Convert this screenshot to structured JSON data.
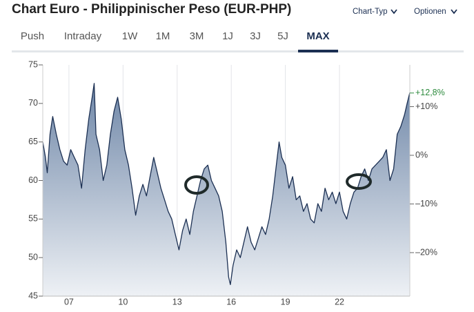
{
  "ui": {
    "menu": [
      "Chart-Typ",
      "Optionen"
    ],
    "tabs": [
      "Push",
      "Intraday",
      "1W",
      "1M",
      "3M",
      "1J",
      "3J",
      "5J",
      "MAX"
    ]
  },
  "chart_data": {
    "type": "area",
    "title": "Chart Euro - Philippinischer Peso (EUR-PHP)",
    "x": [
      2005.55,
      2005.7,
      2005.8,
      2005.95,
      2006.1,
      2006.3,
      2006.5,
      2006.7,
      2006.9,
      2007.1,
      2007.3,
      2007.5,
      2007.7,
      2007.9,
      2008.1,
      2008.3,
      2008.4,
      2008.5,
      2008.7,
      2008.9,
      2009.1,
      2009.3,
      2009.5,
      2009.7,
      2009.9,
      2010.1,
      2010.3,
      2010.5,
      2010.7,
      2010.9,
      2011.1,
      2011.3,
      2011.5,
      2011.7,
      2011.9,
      2012.1,
      2012.3,
      2012.5,
      2012.7,
      2012.9,
      2013.1,
      2013.3,
      2013.5,
      2013.7,
      2013.9,
      2014.1,
      2014.3,
      2014.5,
      2014.7,
      2014.9,
      2015.1,
      2015.3,
      2015.5,
      2015.7,
      2015.85,
      2015.95,
      2016.1,
      2016.3,
      2016.5,
      2016.7,
      2016.9,
      2017.1,
      2017.3,
      2017.5,
      2017.7,
      2017.9,
      2018.1,
      2018.3,
      2018.5,
      2018.65,
      2018.8,
      2019.0,
      2019.2,
      2019.4,
      2019.6,
      2019.8,
      2020.0,
      2020.2,
      2020.4,
      2020.6,
      2020.8,
      2021.0,
      2021.2,
      2021.4,
      2021.6,
      2021.8,
      2022.0,
      2022.2,
      2022.4,
      2022.6,
      2022.8,
      2023.0,
      2023.2,
      2023.4,
      2023.6,
      2023.8,
      2024.0,
      2024.2,
      2024.4,
      2024.6,
      2024.8,
      2025.0,
      2025.2,
      2025.4,
      2025.6,
      2025.75,
      2025.9
    ],
    "series": [
      {
        "color": "#1b2f52",
        "values": [
          65,
          63,
          61,
          66,
          68.3,
          66,
          64,
          62.5,
          62,
          64,
          63,
          62,
          59,
          64,
          68,
          71,
          72.6,
          66,
          64,
          60,
          62,
          66,
          69,
          70.8,
          68,
          64,
          62,
          59,
          55.5,
          58,
          59.5,
          58,
          60.5,
          63,
          61,
          59,
          57.5,
          56,
          55,
          53,
          51,
          53.5,
          55,
          53,
          56,
          58,
          60,
          61.5,
          62,
          60,
          59,
          58,
          56,
          52,
          47.5,
          46.5,
          49,
          51,
          50,
          52,
          54,
          52,
          51,
          52.5,
          54,
          53,
          55,
          58,
          62,
          65,
          63,
          62,
          59,
          60.5,
          57.5,
          58,
          56,
          57,
          55,
          54.5,
          57,
          56,
          59,
          57.5,
          58.5,
          57,
          58.5,
          56,
          55,
          57,
          58.5,
          59,
          60.5,
          61.5,
          60,
          61.5,
          62,
          62.5,
          63,
          64,
          60,
          61.5,
          66,
          67,
          68.5,
          70,
          71.4
        ]
      }
    ],
    "xlim": [
      2005.55,
      2025.9
    ],
    "xticks": [
      {
        "value": 2007,
        "label": "07"
      },
      {
        "value": 2010,
        "label": "10"
      },
      {
        "value": 2013,
        "label": "13"
      },
      {
        "value": 2016,
        "label": "16"
      },
      {
        "value": 2019,
        "label": "19"
      },
      {
        "value": 2022,
        "label": "22"
      }
    ],
    "ylim": [
      45,
      75
    ],
    "yticks": [
      45,
      50,
      55,
      60,
      65,
      70,
      75
    ],
    "y2lim": [
      -28.94,
      18.58
    ],
    "y2ticks": [
      {
        "value": 10,
        "label": "+10%"
      },
      {
        "value": 0,
        "label": "0%"
      },
      {
        "value": -10,
        "label": "–10%"
      },
      {
        "value": -20,
        "label": "–20%"
      }
    ],
    "current_change": {
      "value": 12.8,
      "label": "+12,8%",
      "color": "#2e8b3e"
    },
    "grid": true
  }
}
